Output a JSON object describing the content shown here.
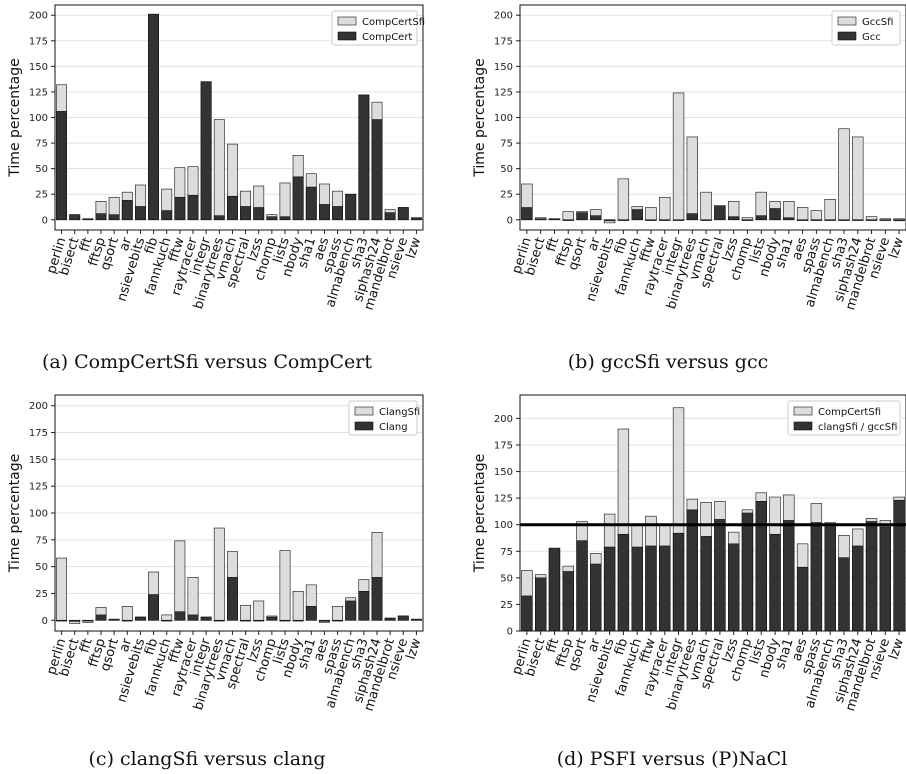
{
  "chart_data": [
    {
      "type": "bar",
      "caption": "(a) CompCertSfi versus CompCert",
      "ylabel": "Time percentage",
      "ylim": [
        -10,
        210
      ],
      "yticks": [
        0,
        25,
        50,
        75,
        100,
        125,
        150,
        175,
        200
      ],
      "legend_position": "top-right",
      "grid": "horizontal",
      "categories": [
        "perlin",
        "bisect",
        "fft",
        "fftsp",
        "qsort",
        "ar",
        "nsievebits",
        "fib",
        "fannkuch",
        "fftw",
        "raytracer",
        "integr",
        "binarytrees",
        "vmach",
        "spectral",
        "lzss",
        "chomp",
        "lists",
        "nbody",
        "sha1",
        "aes",
        "spass",
        "almabench",
        "sha3",
        "siphash24",
        "mandelbrot",
        "nsieve",
        "lzw"
      ],
      "series": [
        {
          "name": "CompCertSfi",
          "color": "#dddddd",
          "values": [
            132,
            5,
            1,
            18,
            22,
            27,
            34,
            201,
            30,
            51,
            52,
            135,
            98,
            74,
            28,
            33,
            5,
            36,
            63,
            45,
            35,
            28,
            25,
            122,
            115,
            10,
            12,
            2
          ]
        },
        {
          "name": "CompCert",
          "color": "#333333",
          "values": [
            106,
            5,
            1,
            6,
            5,
            19,
            13,
            201,
            9,
            22,
            24,
            135,
            4,
            23,
            13,
            12,
            3,
            3,
            42,
            32,
            15,
            13,
            25,
            122,
            98,
            7,
            12,
            2
          ]
        }
      ]
    },
    {
      "type": "bar",
      "caption": "(b) gccSfi versus gcc",
      "ylabel": "Time percentage",
      "ylim": [
        -10,
        210
      ],
      "yticks": [
        0,
        25,
        50,
        75,
        100,
        125,
        150,
        175,
        200
      ],
      "legend_position": "top-right",
      "grid": "horizontal",
      "categories": [
        "perlin",
        "bisect",
        "fft",
        "fftsp",
        "qsort",
        "ar",
        "nsievebits",
        "fib",
        "fannkuch",
        "fftw",
        "raytracer",
        "integr",
        "binarytrees",
        "vmach",
        "spectral",
        "lzss",
        "chomp",
        "lists",
        "nbody",
        "sha1",
        "aes",
        "spass",
        "almabench",
        "sha3",
        "siphash24",
        "mandelbrot",
        "nsieve",
        "lzw"
      ],
      "series": [
        {
          "name": "GccSfi",
          "color": "#dddddd",
          "values": [
            35,
            2,
            1,
            8,
            8,
            10,
            -3,
            40,
            13,
            12,
            22,
            124,
            81,
            27,
            14,
            18,
            2,
            27,
            18,
            18,
            12,
            9,
            20,
            89,
            81,
            3,
            1,
            1
          ]
        },
        {
          "name": "Gcc",
          "color": "#333333",
          "values": [
            12,
            1,
            1,
            0,
            7,
            4,
            -1,
            0,
            10,
            0,
            0,
            0,
            6,
            0,
            13,
            3,
            0,
            4,
            11,
            2,
            0,
            0,
            0,
            0,
            0,
            0,
            0,
            -1
          ]
        }
      ]
    },
    {
      "type": "bar",
      "caption": "(c) clangSfi versus clang",
      "ylabel": "Time percentage",
      "ylim": [
        -10,
        210
      ],
      "yticks": [
        0,
        25,
        50,
        75,
        100,
        125,
        150,
        175,
        200
      ],
      "legend_position": "top-right",
      "grid": "horizontal",
      "categories": [
        "perlin",
        "bisect",
        "fft",
        "fftsp",
        "qsort",
        "ar",
        "nsievebits",
        "fib",
        "fannkuch",
        "fftw",
        "raytracer",
        "integr",
        "binarytrees",
        "vmach",
        "spectral",
        "lzss",
        "chomp",
        "lists",
        "nbody",
        "sha1",
        "aes",
        "spass",
        "almabench",
        "sha3",
        "siphash24",
        "mandelbrot",
        "nsieve",
        "lzw"
      ],
      "series": [
        {
          "name": "ClangSfi",
          "color": "#dddddd",
          "values": [
            58,
            -3,
            -2,
            12,
            1,
            13,
            3,
            45,
            5,
            74,
            40,
            3,
            86,
            64,
            14,
            18,
            4,
            65,
            27,
            33,
            -2,
            13,
            21,
            38,
            82,
            2,
            4,
            1
          ]
        },
        {
          "name": "Clang",
          "color": "#333333",
          "values": [
            0,
            -1,
            0,
            5,
            1,
            0,
            3,
            24,
            0,
            8,
            5,
            3,
            0,
            40,
            0,
            0,
            3,
            0,
            0,
            13,
            -1,
            0,
            18,
            27,
            40,
            2,
            4,
            1
          ]
        }
      ]
    },
    {
      "type": "bar",
      "caption": "(d) PSFI versus (P)NaCl",
      "ylabel": "Time percentage",
      "ylim": [
        0,
        222
      ],
      "yticks": [
        0,
        25,
        50,
        75,
        100,
        125,
        150,
        175,
        200
      ],
      "legend_position": "top-right",
      "grid": "horizontal",
      "reference_line": 100,
      "categories": [
        "perlin",
        "bisect",
        "fft",
        "fftsp",
        "qsort",
        "ar",
        "nsievebits",
        "fib",
        "fannkuch",
        "fftw",
        "raytracer",
        "integr",
        "binarytrees",
        "vmach",
        "spectral",
        "lzss",
        "chomp",
        "lists",
        "nbody",
        "sha1",
        "aes",
        "spass",
        "almabench",
        "sha3",
        "siphash24",
        "mandelbrot",
        "nsieve",
        "lzw"
      ],
      "series": [
        {
          "name": "CompCertSfi",
          "color": "#dddddd",
          "values": [
            57,
            53,
            77,
            61,
            103,
            73,
            110,
            190,
            99,
            108,
            100,
            210,
            124,
            121,
            122,
            93,
            114,
            130,
            126,
            128,
            82,
            120,
            102,
            90,
            96,
            106,
            104,
            126
          ]
        },
        {
          "name": "clangSfi / gccSfi",
          "color": "#333333",
          "values": [
            33,
            50,
            78,
            56,
            85,
            63,
            79,
            91,
            79,
            80,
            80,
            92,
            114,
            89,
            105,
            82,
            111,
            122,
            91,
            104,
            60,
            102,
            101,
            69,
            80,
            103,
            98,
            123
          ]
        }
      ]
    }
  ]
}
